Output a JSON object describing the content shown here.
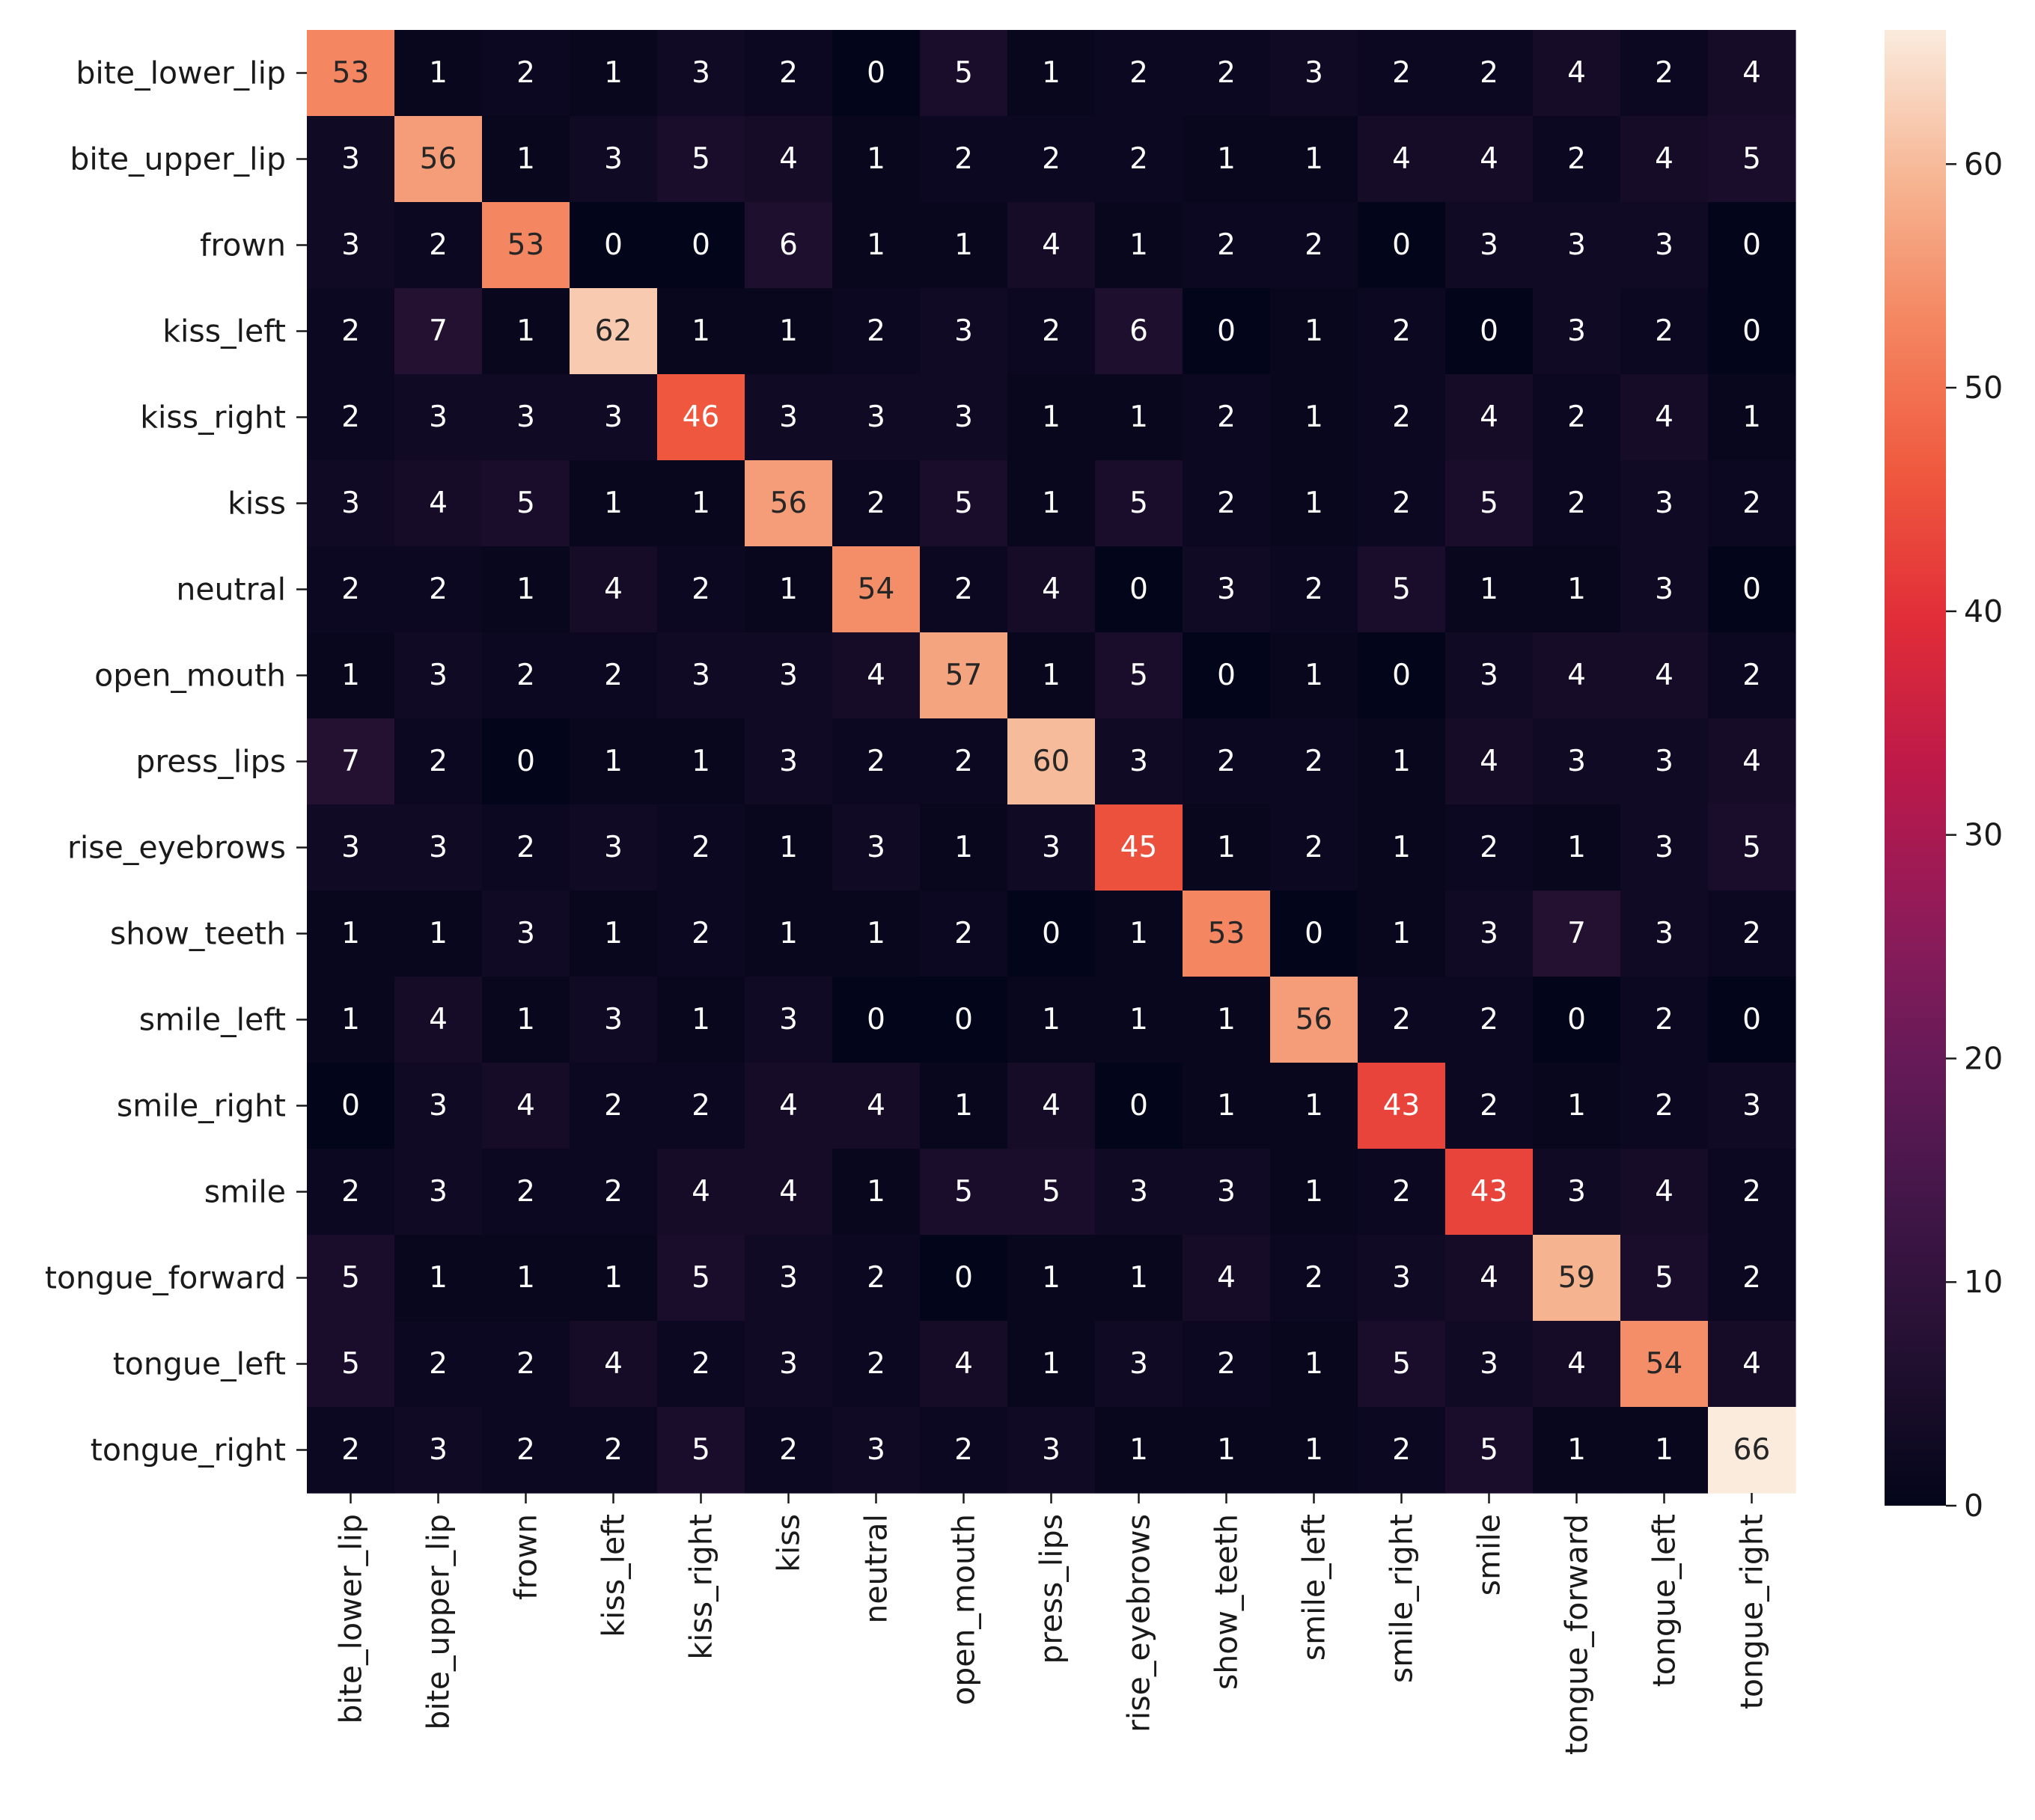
{
  "chart_data": {
    "type": "heatmap",
    "title": "",
    "xlabel": "",
    "ylabel": "",
    "labels": [
      "bite_lower_lip",
      "bite_upper_lip",
      "frown",
      "kiss_left",
      "kiss_right",
      "kiss",
      "neutral",
      "open_mouth",
      "press_lips",
      "rise_eyebrows",
      "show_teeth",
      "smile_left",
      "smile_right",
      "smile",
      "tongue_forward",
      "tongue_left",
      "tongue_right"
    ],
    "matrix": [
      [
        53,
        1,
        2,
        1,
        3,
        2,
        0,
        5,
        1,
        2,
        2,
        3,
        2,
        2,
        4,
        2,
        4
      ],
      [
        3,
        56,
        1,
        3,
        5,
        4,
        1,
        2,
        2,
        2,
        1,
        1,
        4,
        4,
        2,
        4,
        5
      ],
      [
        3,
        2,
        53,
        0,
        0,
        6,
        1,
        1,
        4,
        1,
        2,
        2,
        0,
        3,
        3,
        3,
        0
      ],
      [
        2,
        7,
        1,
        62,
        1,
        1,
        2,
        3,
        2,
        6,
        0,
        1,
        2,
        0,
        3,
        2,
        0
      ],
      [
        2,
        3,
        3,
        3,
        46,
        3,
        3,
        3,
        1,
        1,
        2,
        1,
        2,
        4,
        2,
        4,
        1
      ],
      [
        3,
        4,
        5,
        1,
        1,
        56,
        2,
        5,
        1,
        5,
        2,
        1,
        2,
        5,
        2,
        3,
        2
      ],
      [
        2,
        2,
        1,
        4,
        2,
        1,
        54,
        2,
        4,
        0,
        3,
        2,
        5,
        1,
        1,
        3,
        0
      ],
      [
        1,
        3,
        2,
        2,
        3,
        3,
        4,
        57,
        1,
        5,
        0,
        1,
        0,
        3,
        4,
        4,
        2
      ],
      [
        7,
        2,
        0,
        1,
        1,
        3,
        2,
        2,
        60,
        3,
        2,
        2,
        1,
        4,
        3,
        3,
        4
      ],
      [
        3,
        3,
        2,
        3,
        2,
        1,
        3,
        1,
        3,
        45,
        1,
        2,
        1,
        2,
        1,
        3,
        5
      ],
      [
        1,
        1,
        3,
        1,
        2,
        1,
        1,
        2,
        0,
        1,
        53,
        0,
        1,
        3,
        7,
        3,
        2
      ],
      [
        1,
        4,
        1,
        3,
        1,
        3,
        0,
        0,
        1,
        1,
        1,
        56,
        2,
        2,
        0,
        2,
        0
      ],
      [
        0,
        3,
        4,
        2,
        2,
        4,
        4,
        1,
        4,
        0,
        1,
        1,
        43,
        2,
        1,
        2,
        3
      ],
      [
        2,
        3,
        2,
        2,
        4,
        4,
        1,
        5,
        5,
        3,
        3,
        1,
        2,
        43,
        3,
        4,
        2
      ],
      [
        5,
        1,
        1,
        1,
        5,
        3,
        2,
        0,
        1,
        1,
        4,
        2,
        3,
        4,
        59,
        5,
        2
      ],
      [
        5,
        2,
        2,
        4,
        2,
        3,
        2,
        4,
        1,
        3,
        2,
        1,
        5,
        3,
        4,
        54,
        4
      ],
      [
        2,
        3,
        2,
        2,
        5,
        2,
        3,
        2,
        3,
        1,
        1,
        1,
        2,
        5,
        1,
        1,
        66
      ]
    ],
    "colorbar": {
      "vmin": 0,
      "vmax": 66,
      "ticks": [
        0,
        10,
        20,
        30,
        40,
        50,
        60
      ],
      "colormap": "rocket"
    },
    "legend": "colorbar-right"
  }
}
